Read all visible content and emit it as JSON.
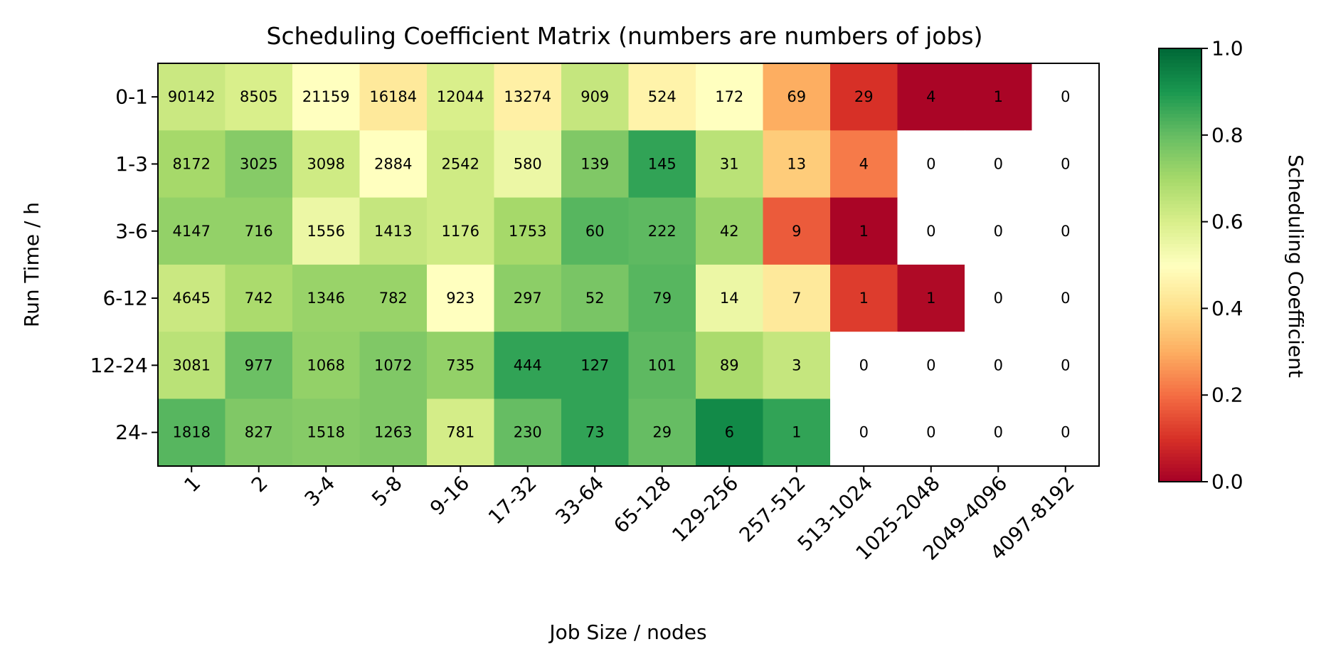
{
  "chart_data": {
    "type": "heatmap",
    "title": "Scheduling Coefficient Matrix (numbers are numbers of jobs)",
    "xlabel": "Job Size / nodes",
    "ylabel": "Run Time / h",
    "x_categories": [
      "1",
      "2",
      "3-4",
      "5-8",
      "9-16",
      "17-32",
      "33-64",
      "65-128",
      "129-256",
      "257-512",
      "513-1024",
      "1025-2048",
      "2049-4096",
      "4097-8192"
    ],
    "y_categories": [
      "0-1",
      "1-3",
      "3-6",
      "6-12",
      "12-24",
      "24-"
    ],
    "job_counts": [
      [
        90142,
        8505,
        21159,
        16184,
        12044,
        13274,
        909,
        524,
        172,
        69,
        29,
        4,
        1,
        0
      ],
      [
        8172,
        3025,
        3098,
        2884,
        2542,
        580,
        139,
        145,
        31,
        13,
        4,
        0,
        0,
        0
      ],
      [
        4147,
        716,
        1556,
        1413,
        1176,
        1753,
        60,
        222,
        42,
        9,
        1,
        0,
        0,
        0
      ],
      [
        4645,
        742,
        1346,
        782,
        923,
        297,
        52,
        79,
        14,
        7,
        1,
        1,
        0,
        0
      ],
      [
        3081,
        977,
        1068,
        1072,
        735,
        444,
        127,
        101,
        89,
        3,
        0,
        0,
        0,
        0
      ],
      [
        1818,
        827,
        1518,
        1263,
        781,
        230,
        73,
        29,
        6,
        1,
        0,
        0,
        0,
        0
      ]
    ],
    "scheduling_coefficient": [
      [
        0.63,
        0.6,
        0.5,
        0.43,
        0.6,
        0.45,
        0.64,
        0.46,
        0.5,
        0.3,
        0.1,
        0.01,
        0.01,
        null
      ],
      [
        0.7,
        0.75,
        0.62,
        0.5,
        0.62,
        0.55,
        0.76,
        0.87,
        0.66,
        0.36,
        0.22,
        null,
        null,
        null
      ],
      [
        0.73,
        0.73,
        0.55,
        0.64,
        0.62,
        0.7,
        0.82,
        0.81,
        0.72,
        0.17,
        0.01,
        null,
        null,
        null
      ],
      [
        0.63,
        0.69,
        0.72,
        0.72,
        0.5,
        0.74,
        0.77,
        0.82,
        0.55,
        0.43,
        0.12,
        0.02,
        null,
        null
      ],
      [
        0.66,
        0.79,
        0.73,
        0.76,
        0.73,
        0.87,
        0.87,
        0.81,
        0.69,
        0.64,
        null,
        null,
        null,
        null
      ],
      [
        0.82,
        0.76,
        0.75,
        0.76,
        0.61,
        0.8,
        0.87,
        0.8,
        0.93,
        0.87,
        null,
        null,
        null,
        null
      ]
    ],
    "colorbar": {
      "label": "Scheduling Coefficient",
      "colormap": "RdYlGn",
      "range": [
        0.0,
        1.0
      ],
      "ticks": [
        "0.0",
        "0.2",
        "0.4",
        "0.6",
        "0.8",
        "1.0"
      ]
    },
    "colors": {
      "cmap_stops": [
        "#a50026",
        "#d73027",
        "#f46d43",
        "#fdae61",
        "#fee08b",
        "#ffffbf",
        "#d9ef8b",
        "#a6d96a",
        "#66bd63",
        "#1a9850",
        "#006837"
      ],
      "empty_cell": "#ffffff",
      "frame": "#000000"
    }
  }
}
